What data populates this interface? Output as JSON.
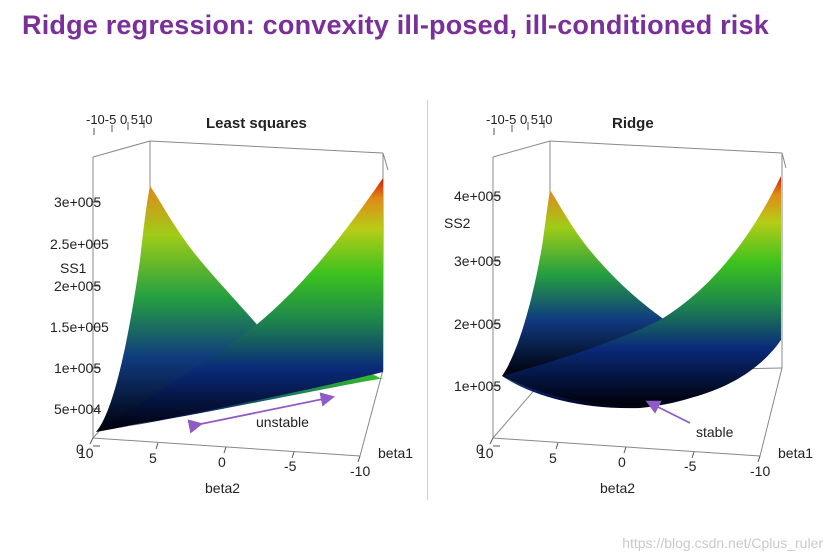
{
  "slide": {
    "title": "Ridge regression: convexity ill-posed, ill-conditioned risk",
    "watermark": "https://blog.csdn.net/Cplus_ruler"
  },
  "left_plot": {
    "title": "Least squares",
    "top_axis_ticks": "-10-5 0 510",
    "z_label": "SS1",
    "z_ticks": [
      "3e+005",
      "2.5e+005",
      "2e+005",
      "1.5e+005",
      "1e+005",
      "5e+004",
      "0"
    ],
    "x_label": "beta2",
    "x_ticks": [
      "10",
      "5",
      "0",
      "-5",
      "-10"
    ],
    "y_label": "beta1",
    "annotation": "unstable"
  },
  "right_plot": {
    "title": "Ridge",
    "top_axis_ticks": "-10-5 0 510",
    "z_label": "SS2",
    "z_ticks": [
      "4e+005",
      "3e+005",
      "2e+005",
      "1e+005",
      "0"
    ],
    "x_label": "beta2",
    "x_ticks": [
      "10",
      "5",
      "0",
      "-5",
      "-10"
    ],
    "y_label": "beta1",
    "annotation": "stable"
  },
  "colors": {
    "title": "#7a2f9a",
    "arrow": "#8e5cc4",
    "surface_low": "#000010",
    "surface_mid": "#1a7a6a",
    "surface_high": "#d11a0a"
  }
}
